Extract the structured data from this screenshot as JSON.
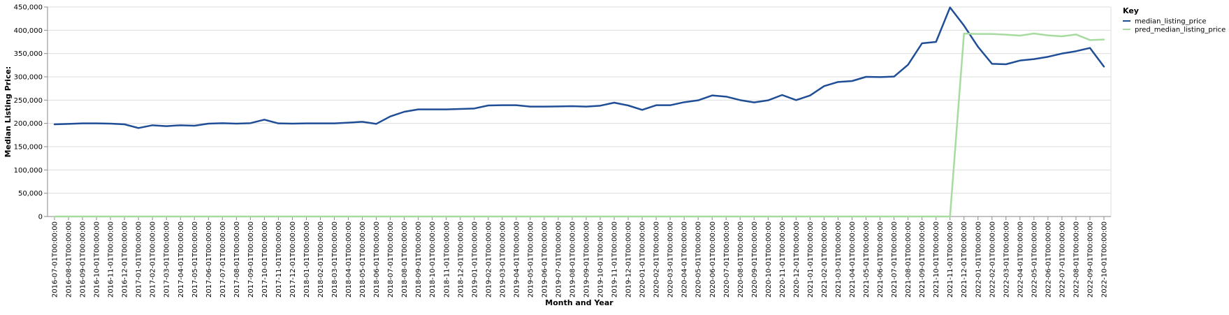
{
  "chart_data": {
    "type": "line",
    "title": "",
    "xlabel": "Month and Year",
    "ylabel": "Median Listing Price:",
    "ylim": [
      0,
      450000
    ],
    "y_ticks": [
      0,
      50000,
      100000,
      150000,
      200000,
      250000,
      300000,
      350000,
      400000,
      450000
    ],
    "y_tick_labels": [
      "0",
      "50,000",
      "100,000",
      "150,000",
      "200,000",
      "250,000",
      "300,000",
      "350,000",
      "400,000",
      "450,000"
    ],
    "grid": true,
    "legend_title": "Key",
    "legend_position": "top-right",
    "x": [
      "2016-07-01T00:00:00",
      "2016-08-01T00:00:00",
      "2016-09-01T00:00:00",
      "2016-10-01T00:00:00",
      "2016-11-01T00:00:00",
      "2016-12-01T00:00:00",
      "2017-01-01T00:00:00",
      "2017-02-01T00:00:00",
      "2017-03-01T00:00:00",
      "2017-04-01T00:00:00",
      "2017-05-01T00:00:00",
      "2017-06-01T00:00:00",
      "2017-07-01T00:00:00",
      "2017-08-01T00:00:00",
      "2017-09-01T00:00:00",
      "2017-10-01T00:00:00",
      "2017-11-01T00:00:00",
      "2017-12-01T00:00:00",
      "2018-01-01T00:00:00",
      "2018-02-01T00:00:00",
      "2018-03-01T00:00:00",
      "2018-04-01T00:00:00",
      "2018-05-01T00:00:00",
      "2018-06-01T00:00:00",
      "2018-07-01T00:00:00",
      "2018-08-01T00:00:00",
      "2018-09-01T00:00:00",
      "2018-10-01T00:00:00",
      "2018-11-01T00:00:00",
      "2018-12-01T00:00:00",
      "2019-01-01T00:00:00",
      "2019-02-01T00:00:00",
      "2019-03-01T00:00:00",
      "2019-04-01T00:00:00",
      "2019-05-01T00:00:00",
      "2019-06-01T00:00:00",
      "2019-07-01T00:00:00",
      "2019-08-01T00:00:00",
      "2019-09-01T00:00:00",
      "2019-10-01T00:00:00",
      "2019-11-01T00:00:00",
      "2019-12-01T00:00:00",
      "2020-01-01T00:00:00",
      "2020-02-01T00:00:00",
      "2020-03-01T00:00:00",
      "2020-04-01T00:00:00",
      "2020-05-01T00:00:00",
      "2020-06-01T00:00:00",
      "2020-07-01T00:00:00",
      "2020-08-01T00:00:00",
      "2020-09-01T00:00:00",
      "2020-10-01T00:00:00",
      "2020-11-01T00:00:00",
      "2020-12-01T00:00:00",
      "2021-01-01T00:00:00",
      "2021-02-01T00:00:00",
      "2021-03-01T00:00:00",
      "2021-04-01T00:00:00",
      "2021-05-01T00:00:00",
      "2021-06-01T00:00:00",
      "2021-07-01T00:00:00",
      "2021-08-01T00:00:00",
      "2021-09-01T00:00:00",
      "2021-10-01T00:00:00",
      "2021-11-01T00:00:00",
      "2021-12-01T00:00:00",
      "2022-01-01T00:00:00",
      "2022-02-01T00:00:00",
      "2022-03-01T00:00:00",
      "2022-04-01T00:00:00",
      "2022-05-01T00:00:00",
      "2022-06-01T00:00:00",
      "2022-07-01T00:00:00",
      "2022-08-01T00:00:00",
      "2022-09-01T00:00:00",
      "2022-10-01T00:00:00"
    ],
    "series": [
      {
        "name": "median_listing_price",
        "color": "#1f4e96",
        "values": [
          198000,
          199000,
          200000,
          200000,
          199500,
          198000,
          190000,
          196000,
          194000,
          196000,
          195000,
          199500,
          200500,
          199500,
          200500,
          208000,
          200000,
          199500,
          200000,
          200000,
          200000,
          201500,
          203500,
          199000,
          215000,
          225000,
          230000,
          230000,
          230000,
          231000,
          232000,
          238500,
          239000,
          239000,
          236000,
          236000,
          236500,
          237000,
          236000,
          238000,
          244500,
          238500,
          229000,
          239000,
          239000,
          245500,
          249500,
          260000,
          257500,
          250000,
          245000,
          249500,
          261000,
          250000,
          260000,
          280000,
          289000,
          291000,
          300000,
          299500,
          300500,
          326000,
          372000,
          375000,
          449000,
          410000,
          364500,
          328000,
          327000,
          335000,
          338000,
          343000,
          350000,
          355000,
          362000,
          322000
        ]
      },
      {
        "name": "pred_median_listing_price",
        "color": "#a7dba0",
        "values": [
          0,
          0,
          0,
          0,
          0,
          0,
          0,
          0,
          0,
          0,
          0,
          0,
          0,
          0,
          0,
          0,
          0,
          0,
          0,
          0,
          0,
          0,
          0,
          0,
          0,
          0,
          0,
          0,
          0,
          0,
          0,
          0,
          0,
          0,
          0,
          0,
          0,
          0,
          0,
          0,
          0,
          0,
          0,
          0,
          0,
          0,
          0,
          0,
          0,
          0,
          0,
          0,
          0,
          0,
          0,
          0,
          0,
          0,
          0,
          0,
          0,
          0,
          0,
          0,
          0,
          393000,
          392000,
          392000,
          390500,
          388500,
          393000,
          389000,
          387000,
          391000,
          379000,
          380000
        ]
      }
    ]
  }
}
